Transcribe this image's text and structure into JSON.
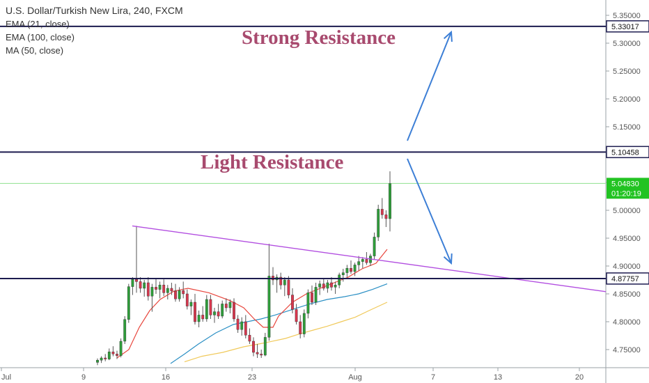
{
  "legend": {
    "title": "U.S. Dollar/Turkish New Lira, 240, FXCM",
    "items": [
      "EMA (21, close)",
      "EMA (100, close)",
      "MA (50, close)"
    ]
  },
  "annotations": {
    "strong": "Strong Resistance",
    "light": "Light Resistance"
  },
  "chart_data": {
    "type": "candlestick",
    "symbol": "USDTRY",
    "timeframe": "240",
    "ylim": [
      4.72,
      5.37
    ],
    "y_ticks": [
      "5.35000",
      "5.30000",
      "5.25000",
      "5.20000",
      "5.15000",
      "5.10000",
      "5.05000",
      "5.00000",
      "4.95000",
      "4.90000",
      "4.85000",
      "4.80000",
      "4.75000"
    ],
    "x_ticks": [
      "Jul",
      "9",
      "16",
      "23",
      "Aug",
      "7",
      "13",
      "20"
    ],
    "horizontal_levels": [
      {
        "value": 5.33017,
        "label": "5.33017"
      },
      {
        "value": 5.10458,
        "label": "5.10458"
      },
      {
        "value": 4.87757,
        "label": "4.87757"
      }
    ],
    "last_price": {
      "value": "5.04830",
      "countdown": "01:20:19"
    },
    "colors": {
      "up": "#2e9e3a",
      "down": "#d7374e",
      "trendline": "#b24ee0",
      "arrows": "#3d7fd6",
      "ema21": "#e8453c",
      "ema100": "#2a8fc4",
      "ma50": "#f0c95a",
      "levels": "#1c1b4f"
    },
    "candles": [
      [
        4.727,
        4.734,
        4.722,
        4.731
      ],
      [
        4.731,
        4.738,
        4.726,
        4.735
      ],
      [
        4.735,
        4.742,
        4.729,
        4.733
      ],
      [
        4.733,
        4.752,
        4.731,
        4.746
      ],
      [
        4.746,
        4.756,
        4.738,
        4.742
      ],
      [
        4.742,
        4.748,
        4.733,
        4.739
      ],
      [
        4.739,
        4.77,
        4.736,
        4.765
      ],
      [
        4.765,
        4.81,
        4.76,
        4.804
      ],
      [
        4.804,
        4.868,
        4.798,
        4.863
      ],
      [
        4.863,
        4.88,
        4.848,
        4.876
      ],
      [
        4.876,
        4.972,
        4.852,
        4.872
      ],
      [
        4.872,
        4.88,
        4.852,
        4.86
      ],
      [
        4.86,
        4.875,
        4.845,
        4.87
      ],
      [
        4.87,
        4.88,
        4.838,
        4.846
      ],
      [
        4.846,
        4.868,
        4.818,
        4.862
      ],
      [
        4.862,
        4.878,
        4.85,
        4.858
      ],
      [
        4.858,
        4.872,
        4.842,
        4.866
      ],
      [
        4.866,
        4.876,
        4.846,
        4.852
      ],
      [
        4.852,
        4.866,
        4.84,
        4.86
      ],
      [
        4.86,
        4.87,
        4.848,
        4.855
      ],
      [
        4.855,
        4.868,
        4.836,
        4.841
      ],
      [
        4.841,
        4.862,
        4.836,
        4.856
      ],
      [
        4.856,
        4.872,
        4.842,
        4.85
      ],
      [
        4.85,
        4.858,
        4.822,
        4.828
      ],
      [
        4.828,
        4.84,
        4.812,
        4.835
      ],
      [
        4.835,
        4.85,
        4.795,
        4.8
      ],
      [
        4.8,
        4.82,
        4.79,
        4.812
      ],
      [
        4.812,
        4.828,
        4.8,
        4.805
      ],
      [
        4.805,
        4.848,
        4.8,
        4.84
      ],
      [
        4.84,
        4.848,
        4.805,
        4.812
      ],
      [
        4.812,
        4.825,
        4.798,
        4.818
      ],
      [
        4.818,
        4.832,
        4.805,
        4.81
      ],
      [
        4.81,
        4.838,
        4.806,
        4.832
      ],
      [
        4.832,
        4.842,
        4.818,
        4.825
      ],
      [
        4.825,
        4.84,
        4.815,
        4.835
      ],
      [
        4.835,
        4.842,
        4.8,
        4.805
      ],
      [
        4.805,
        4.812,
        4.78,
        4.786
      ],
      [
        4.786,
        4.808,
        4.775,
        4.8
      ],
      [
        4.8,
        4.812,
        4.77,
        4.776
      ],
      [
        4.776,
        4.788,
        4.76,
        4.765
      ],
      [
        4.765,
        4.772,
        4.738,
        4.745
      ],
      [
        4.745,
        4.76,
        4.735,
        4.742
      ],
      [
        4.742,
        4.75,
        4.735,
        4.74
      ],
      [
        4.74,
        4.78,
        4.738,
        4.772
      ],
      [
        4.772,
        4.94,
        4.766,
        4.882
      ],
      [
        4.882,
        4.898,
        4.866,
        4.875
      ],
      [
        4.875,
        4.885,
        4.852,
        4.88
      ],
      [
        4.88,
        4.888,
        4.858,
        4.866
      ],
      [
        4.866,
        4.88,
        4.846,
        4.875
      ],
      [
        4.875,
        4.882,
        4.842,
        4.848
      ],
      [
        4.848,
        4.86,
        4.815,
        4.822
      ],
      [
        4.822,
        4.832,
        4.795,
        4.8
      ],
      [
        4.8,
        4.812,
        4.77,
        4.778
      ],
      [
        4.778,
        4.822,
        4.772,
        4.815
      ],
      [
        4.815,
        4.858,
        4.806,
        4.852
      ],
      [
        4.852,
        4.865,
        4.83,
        4.835
      ],
      [
        4.835,
        4.87,
        4.83,
        4.862
      ],
      [
        4.862,
        4.874,
        4.848,
        4.868
      ],
      [
        4.868,
        4.878,
        4.856,
        4.86
      ],
      [
        4.86,
        4.875,
        4.852,
        4.87
      ],
      [
        4.87,
        4.88,
        4.856,
        4.862
      ],
      [
        4.862,
        4.872,
        4.85,
        4.866
      ],
      [
        4.866,
        4.888,
        4.86,
        4.884
      ],
      [
        4.884,
        4.895,
        4.872,
        4.888
      ],
      [
        4.888,
        4.902,
        4.88,
        4.896
      ],
      [
        4.896,
        4.91,
        4.886,
        4.89
      ],
      [
        4.89,
        4.906,
        4.882,
        4.902
      ],
      [
        4.902,
        4.918,
        4.892,
        4.908
      ],
      [
        4.908,
        4.916,
        4.896,
        4.912
      ],
      [
        4.912,
        4.925,
        4.902,
        4.906
      ],
      [
        4.906,
        4.922,
        4.9,
        4.918
      ],
      [
        4.918,
        4.96,
        4.912,
        4.952
      ],
      [
        4.952,
        5.01,
        4.945,
        5.002
      ],
      [
        5.002,
        5.022,
        4.985,
        4.992
      ],
      [
        4.992,
        5.0,
        4.97,
        4.985
      ],
      [
        4.985,
        5.07,
        4.962,
        5.048
      ]
    ],
    "ema21": [
      [
        168,
        4.735
      ],
      [
        185,
        4.75
      ],
      [
        200,
        4.79
      ],
      [
        215,
        4.82
      ],
      [
        230,
        4.84
      ],
      [
        250,
        4.855
      ],
      [
        270,
        4.86
      ],
      [
        300,
        4.852
      ],
      [
        330,
        4.838
      ],
      [
        350,
        4.825
      ],
      [
        365,
        4.805
      ],
      [
        378,
        4.79
      ],
      [
        392,
        4.79
      ],
      [
        400,
        4.81
      ],
      [
        420,
        4.835
      ],
      [
        440,
        4.85
      ],
      [
        460,
        4.86
      ],
      [
        480,
        4.87
      ],
      [
        500,
        4.88
      ],
      [
        520,
        4.895
      ],
      [
        540,
        4.905
      ],
      [
        556,
        4.93
      ]
    ],
    "ema100": [
      [
        245,
        4.725
      ],
      [
        265,
        4.742
      ],
      [
        285,
        4.76
      ],
      [
        310,
        4.78
      ],
      [
        335,
        4.795
      ],
      [
        355,
        4.8
      ],
      [
        375,
        4.805
      ],
      [
        395,
        4.812
      ],
      [
        420,
        4.822
      ],
      [
        445,
        4.832
      ],
      [
        470,
        4.84
      ],
      [
        495,
        4.845
      ],
      [
        515,
        4.85
      ],
      [
        535,
        4.858
      ],
      [
        556,
        4.868
      ]
    ],
    "ma50": [
      [
        265,
        4.728
      ],
      [
        290,
        4.738
      ],
      [
        320,
        4.745
      ],
      [
        350,
        4.755
      ],
      [
        380,
        4.762
      ],
      [
        410,
        4.77
      ],
      [
        430,
        4.778
      ],
      [
        450,
        4.785
      ],
      [
        470,
        4.792
      ],
      [
        490,
        4.8
      ],
      [
        510,
        4.808
      ],
      [
        530,
        4.82
      ],
      [
        556,
        4.835
      ]
    ]
  }
}
